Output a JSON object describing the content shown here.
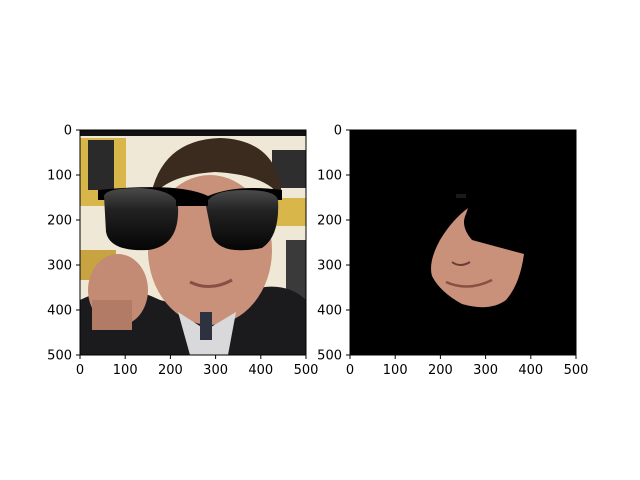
{
  "figure": {
    "subplots": [
      {
        "name": "left",
        "content": "photo of a man wearing overlaid black sunglasses",
        "xlim": [
          0,
          500
        ],
        "ylim": [
          500,
          0
        ],
        "x_ticks": [
          "0",
          "100",
          "200",
          "300",
          "400",
          "500"
        ],
        "y_ticks": [
          "0",
          "100",
          "200",
          "300",
          "400",
          "500"
        ]
      },
      {
        "name": "right",
        "content": "segmented face mask on black background",
        "xlim": [
          0,
          500
        ],
        "ylim": [
          500,
          0
        ],
        "x_ticks": [
          "0",
          "100",
          "200",
          "300",
          "400",
          "500"
        ],
        "y_ticks": [
          "0",
          "100",
          "200",
          "300",
          "400",
          "500"
        ]
      }
    ]
  },
  "colors": {
    "background": "#ffffff",
    "mask_background": "#000000",
    "axis": "#000000",
    "sunglasses": "#111111",
    "skin": "#c9907a",
    "suit": "#1b1b1d",
    "hair": "#3b2a1e",
    "backdrop": "#efe8d6",
    "accent_yellow": "#c9a23a"
  }
}
